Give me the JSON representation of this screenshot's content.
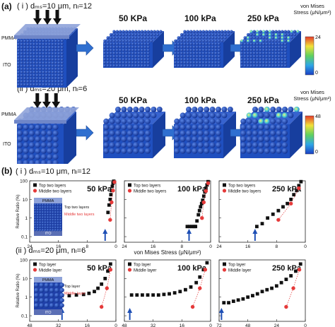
{
  "panel_a": {
    "letter": "(a)",
    "row1_label": "( i ) dₘₛ=10 μm, nₗ=12",
    "row2_label": "(ii ) dₘₛ=20 μm, nₗ=6",
    "pressures": [
      "50 KPa",
      "100 kPa",
      "250 kPa"
    ],
    "pmma_label": "PMMA",
    "ito_label": "ITO",
    "legend_title": "von Mises Stress (μN/μm²)",
    "row1_colorbar_max": "24",
    "row1_colorbar_min": "0",
    "row2_colorbar_max": "48",
    "row2_colorbar_min": "0",
    "colors": {
      "sphere": "#1f4fbf",
      "pmma": "#8fa3d9",
      "arrow": "#2f6fd0"
    }
  },
  "panel_b": {
    "letter": "(b)",
    "row1_label": "( i ) dₘₛ=10 μm, nₗ=12",
    "row2_label": "(ii ) dₘₛ=20 μm, nₗ=6",
    "ylabel": "Relative Ratio (%)",
    "xlabel": "von Mises  Stress (μN/μm²)",
    "inset_row1": {
      "pmma": "PMMA",
      "ito": "ITO",
      "top": "Top two layers",
      "mid": "Middle two layers"
    },
    "inset_row2": {
      "pmma": "PMMA",
      "ito": "ITO",
      "top": "Top layer",
      "mid": "Middle layer"
    }
  },
  "chart_data": [
    {
      "type": "scatter",
      "title": "50 kPa",
      "row": 1,
      "xlabel": "",
      "ylabel": "Relative Ratio (%)",
      "xlim": [
        24,
        0
      ],
      "ylim_log": [
        0.05,
        100
      ],
      "yticks": [
        "100",
        "10",
        "1",
        "0.1"
      ],
      "xticks": [
        "24",
        "16",
        "8",
        "0"
      ],
      "arrow_x": 3,
      "series": [
        {
          "name": "Top two layers",
          "color": "#111111",
          "marker": "square",
          "x": [
            2.2,
            1.9,
            1.6,
            1.4,
            1.2,
            1.0,
            0.8,
            0.6
          ],
          "y": [
            2,
            5,
            10,
            18,
            30,
            50,
            75,
            95
          ]
        },
        {
          "name": "Middle two layers",
          "color": "#e53a3a",
          "marker": "circle",
          "x": [
            1.6,
            1.2,
            0.8,
            0.4
          ],
          "y": [
            0.8,
            7,
            30,
            85
          ]
        }
      ]
    },
    {
      "type": "scatter",
      "title": "100 kPa",
      "row": 1,
      "xlabel": "von Mises  Stress (μN/μm²)",
      "ylabel": "",
      "xlim": [
        24,
        0
      ],
      "ylim_log": [
        0.05,
        100
      ],
      "yticks": [
        "100",
        "10",
        "1",
        "0.1"
      ],
      "xticks": [
        "24",
        "16",
        "8",
        "0"
      ],
      "arrow_x": 6,
      "series": [
        {
          "name": "Top two layers",
          "color": "#111111",
          "marker": "square",
          "x": [
            6.5,
            5.8,
            5.2,
            4.6,
            4.2,
            3.8,
            3.4,
            3.1,
            2.8,
            2.5,
            2.2,
            1.9,
            1.6,
            1.3,
            1.0,
            0.7
          ],
          "y": [
            0.35,
            0.35,
            0.35,
            0.35,
            0.35,
            0.7,
            1.5,
            2.5,
            4,
            6,
            9,
            15,
            25,
            40,
            60,
            90
          ]
        },
        {
          "name": "Middle two layers",
          "color": "#e53a3a",
          "marker": "circle",
          "x": [
            2.4,
            1.9,
            1.3,
            0.7
          ],
          "y": [
            1,
            7,
            28,
            75
          ]
        }
      ]
    },
    {
      "type": "scatter",
      "title": "250 kPa",
      "row": 1,
      "xlabel": "",
      "ylabel": "",
      "xlim": [
        24,
        0
      ],
      "ylim_log": [
        0.05,
        100
      ],
      "yticks": [
        "100",
        "10",
        "1",
        "0.1"
      ],
      "xticks": [
        "24",
        "16",
        "8",
        "0"
      ],
      "arrow_x": 14,
      "series": [
        {
          "name": "Top two layers",
          "color": "#111111",
          "marker": "square",
          "x": [
            13.5,
            12.0,
            10.5,
            9.0,
            7.5,
            6.2,
            5.0,
            4.0,
            3.2,
            2.4,
            1.8,
            1.2
          ],
          "y": [
            0.35,
            0.5,
            1,
            1.6,
            2.5,
            4,
            6,
            10,
            18,
            30,
            55,
            90
          ]
        },
        {
          "name": "Middle two layers",
          "color": "#e53a3a",
          "marker": "circle",
          "x": [
            7.5,
            4.0,
            1.8
          ],
          "y": [
            0.8,
            6,
            40
          ]
        }
      ]
    },
    {
      "type": "scatter",
      "title": "50 kPa",
      "row": 2,
      "xlabel": "",
      "ylabel": "Relative Ratio (%)",
      "xlim": [
        48,
        0
      ],
      "ylim_log": [
        0.05,
        100
      ],
      "yticks": [
        "100",
        "10",
        "1",
        "0.1"
      ],
      "xticks": [
        "48",
        "32",
        "16",
        "0"
      ],
      "arrow_x": 30,
      "series": [
        {
          "name": "Top layer",
          "color": "#111111",
          "marker": "square",
          "x": [
            30,
            26,
            22,
            18,
            15,
            12,
            10,
            8,
            6,
            4.5,
            3
          ],
          "y": [
            1.2,
            1.2,
            1.3,
            1.4,
            1.6,
            2,
            3,
            5,
            10,
            25,
            60
          ]
        },
        {
          "name": "Middle layer",
          "color": "#e53a3a",
          "marker": "circle",
          "x": [
            8,
            5,
            3
          ],
          "y": [
            0.3,
            3,
            30
          ]
        }
      ]
    },
    {
      "type": "scatter",
      "title": "100 kPa",
      "row": 2,
      "xlabel": "von Mises  Stress (μN/μm²)",
      "ylabel": "",
      "xlim": [
        48,
        0
      ],
      "ylim_log": [
        0.05,
        100
      ],
      "yticks": [
        "100",
        "10",
        "1",
        "0.1"
      ],
      "xticks": [
        "48",
        "32",
        "16",
        "0"
      ],
      "arrow_x": 45,
      "series": [
        {
          "name": "Top layer",
          "color": "#111111",
          "marker": "square",
          "x": [
            44,
            41,
            38,
            35,
            32,
            29,
            26,
            23,
            20,
            17,
            14,
            11,
            8,
            6,
            4,
            2
          ],
          "y": [
            1.3,
            1.3,
            1.3,
            1.3,
            1.3,
            1.3,
            1.4,
            1.5,
            1.7,
            2,
            2.5,
            3.5,
            6,
            12,
            30,
            70
          ]
        },
        {
          "name": "Middle layer",
          "color": "#e53a3a",
          "marker": "circle",
          "x": [
            10,
            6,
            3
          ],
          "y": [
            0.3,
            3,
            30
          ]
        }
      ]
    },
    {
      "type": "scatter",
      "title": "250 kPa",
      "row": 2,
      "xlabel": "",
      "ylabel": "",
      "xlim": [
        72,
        0
      ],
      "ylim_log": [
        0.05,
        100
      ],
      "yticks": [
        "100",
        "10",
        "1",
        "0.1"
      ],
      "xticks": [
        "72",
        "48",
        "24",
        "0"
      ],
      "arrow_x": 70,
      "series": [
        {
          "name": "Top layer",
          "color": "#111111",
          "marker": "square",
          "x": [
            68,
            64,
            60,
            56,
            52,
            48,
            44,
            40,
            36,
            32,
            28,
            24,
            20,
            16,
            12,
            8,
            4
          ],
          "y": [
            0.5,
            0.5,
            0.6,
            0.7,
            0.8,
            1,
            1.2,
            1.5,
            2,
            2.5,
            3,
            4,
            6,
            9,
            14,
            25,
            60
          ]
        },
        {
          "name": "Middle layer",
          "color": "#e53a3a",
          "marker": "circle",
          "x": [
            16,
            10,
            5
          ],
          "y": [
            0.3,
            3,
            30
          ]
        }
      ]
    }
  ]
}
